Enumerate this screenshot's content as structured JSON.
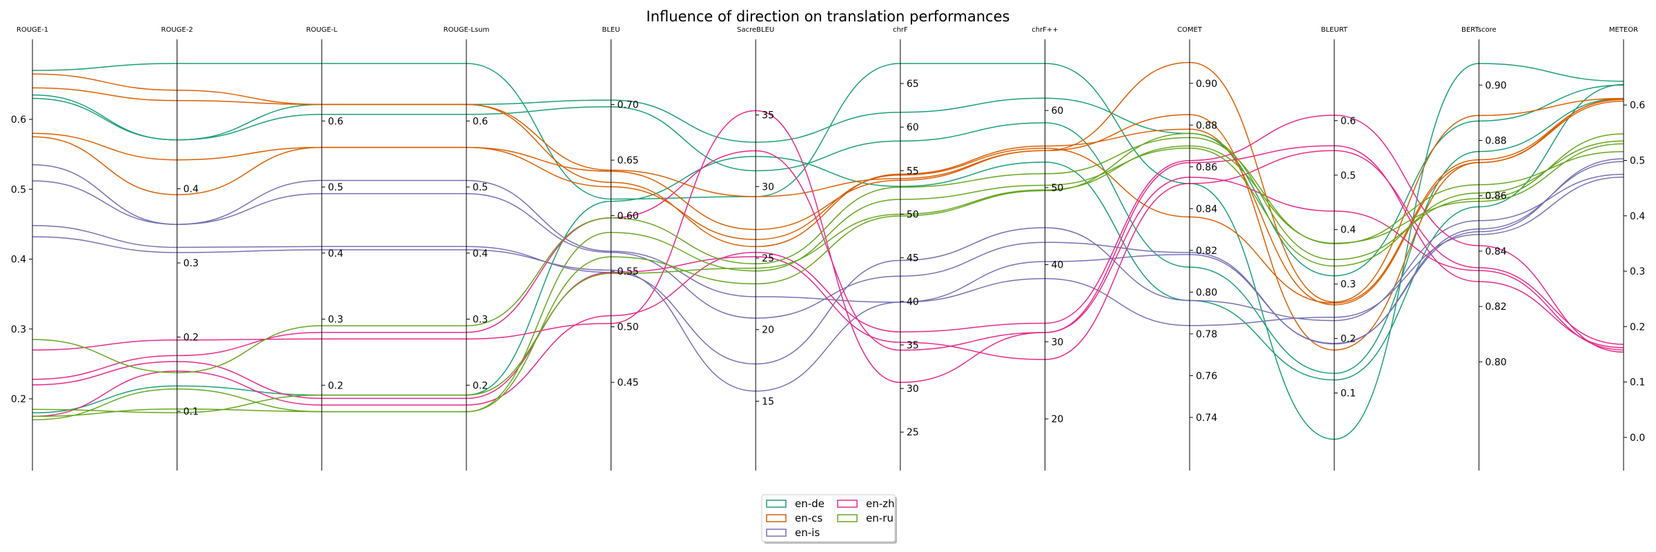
{
  "chart_data": {
    "type": "parallel-coordinates",
    "title": "Influence of direction on translation performances",
    "axes": [
      {
        "name": "ROUGE-1",
        "min": 0.125,
        "max": 0.68,
        "ticks": [
          0.2,
          0.3,
          0.4,
          0.5,
          0.6
        ],
        "tick_labels": [
          "0.2",
          "0.3",
          "0.4",
          "0.5",
          "0.6"
        ],
        "tick_side": "left"
      },
      {
        "name": "ROUGE-2",
        "min": 0.046,
        "max": 0.569,
        "ticks": [
          0.1,
          0.2,
          0.3,
          0.4
        ],
        "tick_labels": [
          "0.1",
          "0.2",
          "0.3",
          "0.4"
        ],
        "tick_side": "right"
      },
      {
        "name": "ROUGE-L",
        "min": 0.1,
        "max": 0.687,
        "ticks": [
          0.2,
          0.3,
          0.4,
          0.5,
          0.6
        ],
        "tick_labels": [
          "0.2",
          "0.3",
          "0.4",
          "0.5",
          "0.6"
        ],
        "tick_side": "right"
      },
      {
        "name": "ROUGE-Lsum",
        "min": 0.1,
        "max": 0.687,
        "ticks": [
          0.2,
          0.3,
          0.4,
          0.5,
          0.6
        ],
        "tick_labels": [
          "0.2",
          "0.3",
          "0.4",
          "0.5",
          "0.6"
        ],
        "tick_side": "right"
      },
      {
        "name": "BLEU",
        "min": 0.388,
        "max": 0.737,
        "ticks": [
          0.45,
          0.5,
          0.55,
          0.6,
          0.65,
          0.7
        ],
        "tick_labels": [
          "0.45",
          "0.50",
          "0.55",
          "0.60",
          "0.65",
          "0.70"
        ],
        "tick_side": "right"
      },
      {
        "name": "SacreBLEU",
        "min": 11.5,
        "max": 38.6,
        "ticks": [
          15,
          20,
          25,
          30,
          35
        ],
        "tick_labels": [
          "15",
          "20",
          "25",
          "30",
          "35"
        ],
        "tick_side": "right"
      },
      {
        "name": "chrF",
        "min": 22.8,
        "max": 67.3,
        "ticks": [
          25,
          30,
          35,
          40,
          45,
          50,
          55,
          60,
          65
        ],
        "tick_labels": [
          "25",
          "30",
          "35",
          "40",
          "45",
          "50",
          "55",
          "60",
          "65"
        ],
        "tick_side": "right"
      },
      {
        "name": "chrF++",
        "min": 15.8,
        "max": 66.1,
        "ticks": [
          20,
          30,
          40,
          50,
          60
        ],
        "tick_labels": [
          "20",
          "30",
          "40",
          "50",
          "60"
        ],
        "tick_side": "right"
      },
      {
        "name": "COMET",
        "min": 0.7238,
        "max": 0.9095,
        "ticks": [
          0.74,
          0.76,
          0.78,
          0.8,
          0.82,
          0.84,
          0.86,
          0.88,
          0.9
        ],
        "tick_labels": [
          "0.74",
          "0.76",
          "0.78",
          "0.80",
          "0.82",
          "0.84",
          "0.86",
          "0.88",
          "0.90"
        ],
        "tick_side": "right"
      },
      {
        "name": "BLEURT",
        "min": -0.007,
        "max": 0.705,
        "ticks": [
          0.1,
          0.2,
          0.3,
          0.4,
          0.5,
          0.6
        ],
        "tick_labels": [
          "0.1",
          "0.2",
          "0.3",
          "0.4",
          "0.5",
          "0.6"
        ],
        "tick_side": "right"
      },
      {
        "name": "BERTscore",
        "min": 0.7677,
        "max": 0.9078,
        "ticks": [
          0.8,
          0.82,
          0.84,
          0.86,
          0.88,
          0.9
        ],
        "tick_labels": [
          "0.80",
          "0.82",
          "0.84",
          "0.86",
          "0.88",
          "0.90"
        ],
        "tick_side": "right"
      },
      {
        "name": "METEOR",
        "min": -0.025,
        "max": 0.675,
        "ticks": [
          0.0,
          0.1,
          0.2,
          0.3,
          0.4,
          0.5,
          0.6
        ],
        "tick_labels": [
          "0.0",
          "0.1",
          "0.2",
          "0.3",
          "0.4",
          "0.5",
          "0.6"
        ],
        "tick_side": "right"
      }
    ],
    "series": [
      {
        "name": "en-de",
        "color": "#1b9e77",
        "lines": [
          [
            0.67,
            0.569,
            0.687,
            0.687,
            0.615,
            29.3,
            67.3,
            66.1,
            0.852,
            0.015,
            0.9078,
            0.643
          ],
          [
            0.635,
            0.466,
            0.625,
            0.625,
            0.704,
            33.1,
            61.7,
            61.6,
            0.876,
            0.315,
            0.887,
            0.636
          ],
          [
            0.63,
            0.466,
            0.61,
            0.61,
            0.698,
            31.1,
            58.4,
            58.4,
            0.812,
            0.136,
            0.876,
            0.612
          ],
          [
            0.18,
            0.134,
            0.185,
            0.185,
            0.613,
            32.1,
            53.2,
            53.3,
            0.796,
            0.124,
            0.856,
            0.637
          ]
        ]
      },
      {
        "name": "en-cs",
        "color": "#d95f02",
        "lines": [
          [
            0.645,
            0.519,
            0.625,
            0.625,
            0.641,
            29.3,
            54.1,
            54.8,
            0.885,
            0.179,
            0.872,
            0.607
          ],
          [
            0.58,
            0.439,
            0.56,
            0.56,
            0.64,
            27.0,
            53.9,
            54.8,
            0.91,
            0.267,
            0.889,
            0.612
          ],
          [
            0.575,
            0.392,
            0.56,
            0.56,
            0.626,
            26.3,
            54.5,
            55.1,
            0.836,
            0.265,
            0.873,
            0.61
          ],
          [
            0.665,
            0.533,
            0.625,
            0.625,
            0.63,
            25.8,
            54.6,
            55.4,
            0.878,
            0.262,
            0.872,
            0.611
          ]
        ]
      },
      {
        "name": "en-is",
        "color": "#7570b3",
        "lines": [
          [
            0.535,
            0.352,
            0.51,
            0.51,
            0.568,
            22.3,
            39.9,
            40.4,
            0.818,
            0.191,
            0.847,
            0.503
          ],
          [
            0.512,
            0.352,
            0.49,
            0.49,
            0.567,
            20.8,
            42.9,
            42.9,
            0.819,
            0.19,
            0.848,
            0.498
          ],
          [
            0.448,
            0.321,
            0.41,
            0.41,
            0.549,
            17.6,
            44.7,
            44.8,
            0.796,
            0.233,
            0.851,
            0.475
          ],
          [
            0.432,
            0.314,
            0.405,
            0.405,
            0.551,
            15.7,
            39.9,
            38.2,
            0.784,
            0.239,
            0.846,
            0.47
          ]
        ]
      },
      {
        "name": "en-zh",
        "color": "#e7298a",
        "lines": [
          [
            0.27,
            0.196,
            0.27,
            0.27,
            0.503,
            35.3,
            30.7,
            31.2,
            0.862,
            0.554,
            0.829,
            0.162
          ],
          [
            0.228,
            0.175,
            0.28,
            0.28,
            0.598,
            32.5,
            34.4,
            31.2,
            0.855,
            0.434,
            0.833,
            0.158
          ],
          [
            0.22,
            0.167,
            0.18,
            0.18,
            0.549,
            25.1,
            35.3,
            27.7,
            0.852,
            0.545,
            0.834,
            0.168
          ],
          [
            0.175,
            0.154,
            0.17,
            0.17,
            0.51,
            25.4,
            36.5,
            32.4,
            0.863,
            0.61,
            0.842,
            0.154
          ]
        ]
      },
      {
        "name": "en-ru",
        "color": "#66a61e",
        "lines": [
          [
            0.285,
            0.152,
            0.29,
            0.29,
            0.598,
            24.6,
            53.1,
            51.8,
            0.874,
            0.374,
            0.864,
            0.516
          ],
          [
            0.185,
            0.098,
            0.185,
            0.185,
            0.548,
            24.3,
            50.0,
            49.7,
            0.87,
            0.375,
            0.858,
            0.53
          ],
          [
            0.17,
            0.13,
            0.16,
            0.16,
            0.563,
            23.2,
            49.8,
            49.6,
            0.876,
            0.345,
            0.859,
            0.548
          ],
          [
            0.175,
            0.103,
            0.16,
            0.16,
            0.585,
            24.1,
            51.7,
            50.3,
            0.869,
            0.333,
            0.861,
            0.535
          ]
        ]
      }
    ],
    "legend": {
      "position": "lower-center",
      "ncol": 2,
      "entries": [
        "en-de",
        "en-cs",
        "en-is",
        "en-zh",
        "en-ru"
      ]
    }
  }
}
